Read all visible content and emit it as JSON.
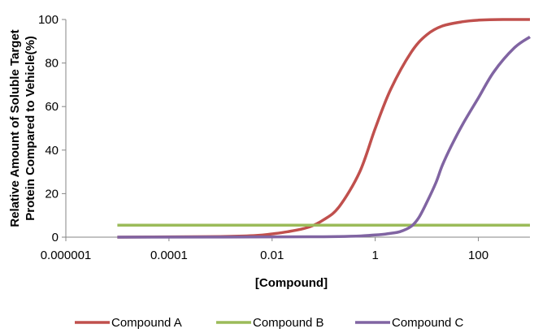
{
  "chart_data": {
    "type": "line",
    "title": "",
    "xlabel": "[Compound]",
    "ylabel_lines": [
      "Relative Amount of Soluble Target",
      "Protein  Compared to Vehicle(%)"
    ],
    "x_scale": "log",
    "xlim": [
      1e-06,
      1000
    ],
    "ylim": [
      0,
      100
    ],
    "x_ticks": [
      {
        "value": 1e-06,
        "label": "0.000001"
      },
      {
        "value": 0.0001,
        "label": "0.0001"
      },
      {
        "value": 0.01,
        "label": "0.01"
      },
      {
        "value": 1,
        "label": "1"
      },
      {
        "value": 100,
        "label": "100"
      }
    ],
    "y_ticks": [
      {
        "value": 0,
        "label": "0"
      },
      {
        "value": 20,
        "label": "20"
      },
      {
        "value": 40,
        "label": "40"
      },
      {
        "value": 60,
        "label": "60"
      },
      {
        "value": 80,
        "label": "80"
      },
      {
        "value": 100,
        "label": "100"
      }
    ],
    "grid": false,
    "legend_position": "bottom",
    "series": [
      {
        "name": "Compound A",
        "color": "#c0504d",
        "x": [
          1e-05,
          0.001,
          0.005,
          0.01,
          0.02,
          0.05,
          0.1,
          0.2,
          0.5,
          1,
          2,
          5,
          10,
          20,
          50,
          100,
          300,
          1000
        ],
        "y": [
          0,
          0.3,
          0.8,
          1.5,
          2.5,
          4.5,
          8,
          14,
          30,
          50,
          68,
          85,
          93,
          97,
          99,
          99.7,
          100,
          100
        ]
      },
      {
        "name": "Compound B",
        "color": "#9bbb59",
        "x": [
          1e-05,
          1000
        ],
        "y": [
          5.5,
          5.5
        ]
      },
      {
        "name": "Compound C",
        "color": "#8064a2",
        "x": [
          1e-05,
          0.1,
          1,
          2,
          3,
          5,
          7,
          10,
          15,
          20,
          30,
          50,
          100,
          200,
          500,
          1000
        ],
        "y": [
          0,
          0.2,
          1,
          1.8,
          2.5,
          5,
          9,
          16,
          25,
          33,
          42,
          52,
          64,
          76,
          87,
          92
        ]
      }
    ]
  }
}
